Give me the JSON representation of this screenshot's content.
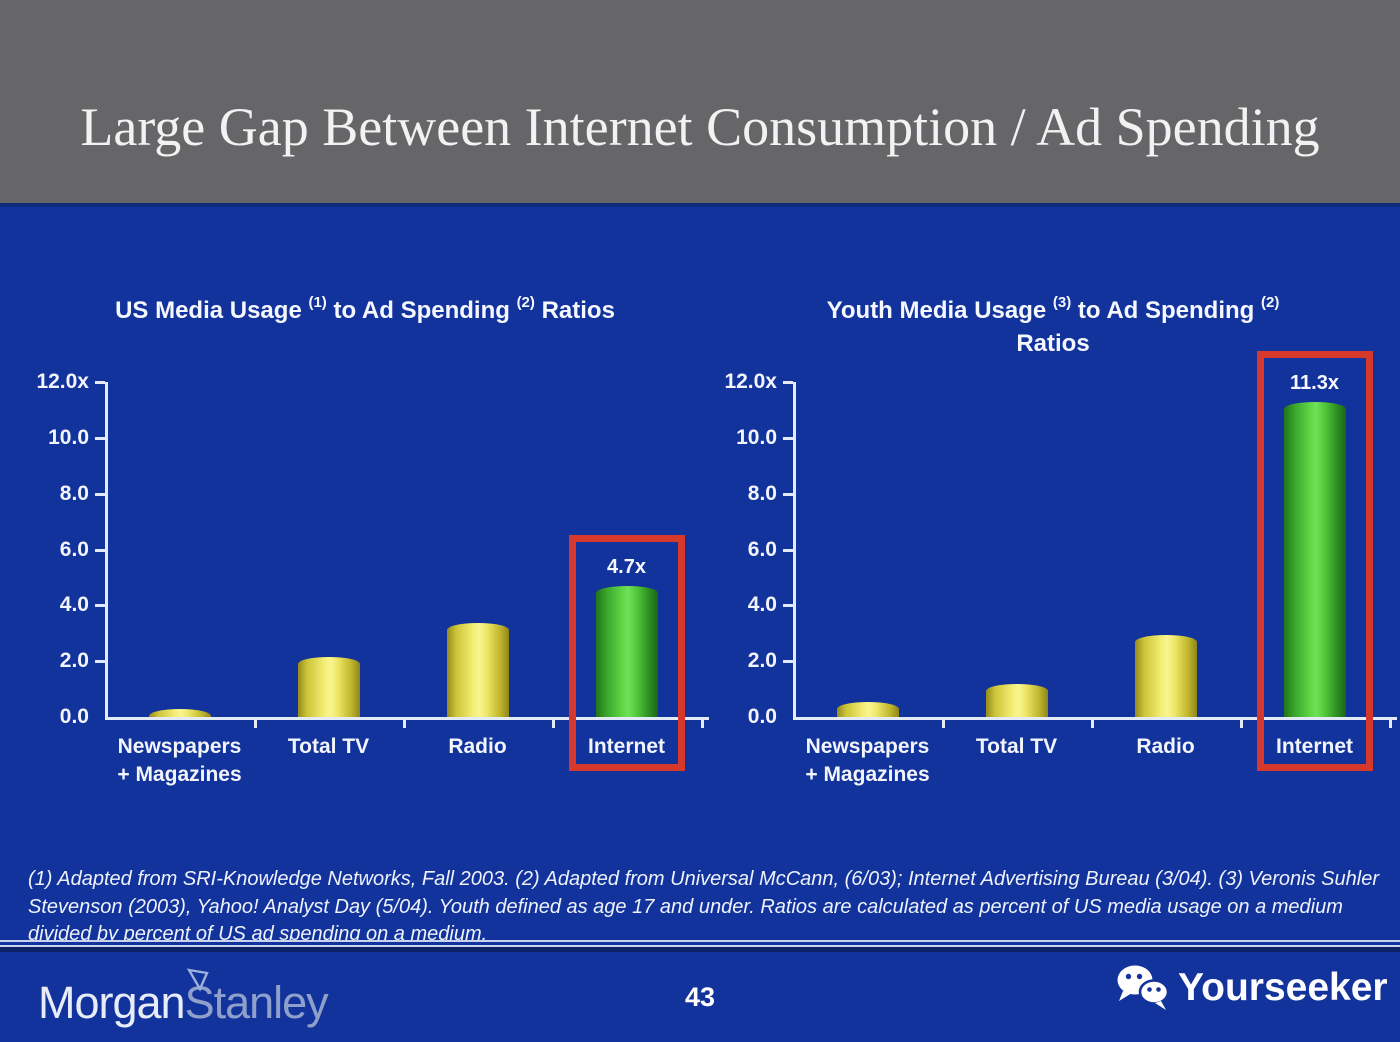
{
  "slide": {
    "title": "Large Gap Between Internet Consumption / Ad Spending",
    "page_number": "43",
    "footnote": "(1) Adapted from SRI-Knowledge Networks, Fall 2003.  (2) Adapted from Universal McCann, (6/03); Internet Advertising Bureau (3/04). (3) Veronis Suhler Stevenson (2003), Yahoo! Analyst Day (5/04).  Youth defined as age 17 and under.  Ratios are calculated as percent of US media usage on a medium divided by percent of US ad spending on a medium."
  },
  "branding": {
    "logo_left_word1": "Morgan",
    "logo_left_word2": "Stanley",
    "logo_right": "Yourseeker",
    "logo_right_icon": "wechat-icon"
  },
  "colors": {
    "header_gray": "#666567",
    "background_blue": "#13339c",
    "bar_yellow_center": "#f9f590",
    "bar_yellow_edge": "#958b1e",
    "bar_green_center": "#70e257",
    "bar_green_edge": "#227318",
    "highlight_red": "#d6392b",
    "text_white": "#f2f5fc",
    "logo_morgan": "#e7ecf8",
    "logo_stanley": "#8fa0cb"
  },
  "chart_data": [
    {
      "type": "bar",
      "title_lines": [
        [
          {
            "text": "US Media Usage "
          },
          {
            "sup": "(1)"
          },
          {
            "text": " to Ad Spending "
          },
          {
            "sup": "(2)"
          },
          {
            "text": " Ratios"
          }
        ]
      ],
      "categories": [
        [
          "Newspapers",
          "+ Magazines"
        ],
        [
          "Total TV"
        ],
        [
          "Radio"
        ],
        [
          "Internet"
        ]
      ],
      "values": [
        0.3,
        2.15,
        3.35,
        4.7
      ],
      "bar_colors": [
        "yellow",
        "yellow",
        "yellow",
        "green"
      ],
      "ylim": [
        0,
        12
      ],
      "yticks": [
        {
          "label": "12.0x",
          "value": 12
        },
        {
          "label": "10.0",
          "value": 10
        },
        {
          "label": "8.0",
          "value": 8
        },
        {
          "label": "6.0",
          "value": 6
        },
        {
          "label": "4.0",
          "value": 4
        },
        {
          "label": "2.0",
          "value": 2
        },
        {
          "label": "0.0",
          "value": 0
        }
      ],
      "grid": false,
      "legend": null,
      "highlight": {
        "index": 3,
        "label": "4.7x"
      }
    },
    {
      "type": "bar",
      "title_lines": [
        [
          {
            "text": "Youth Media Usage "
          },
          {
            "sup": "(3)"
          },
          {
            "text": " to Ad Spending "
          },
          {
            "sup": "(2)"
          }
        ],
        [
          {
            "text": "Ratios"
          }
        ]
      ],
      "categories": [
        [
          "Newspapers",
          "+ Magazines"
        ],
        [
          "Total TV"
        ],
        [
          "Radio"
        ],
        [
          "Internet"
        ]
      ],
      "values": [
        0.55,
        1.2,
        2.95,
        11.3
      ],
      "bar_colors": [
        "yellow",
        "yellow",
        "yellow",
        "green"
      ],
      "ylim": [
        0,
        12
      ],
      "yticks": [
        {
          "label": "12.0x",
          "value": 12
        },
        {
          "label": "10.0",
          "value": 10
        },
        {
          "label": "8.0",
          "value": 8
        },
        {
          "label": "6.0",
          "value": 6
        },
        {
          "label": "4.0",
          "value": 4
        },
        {
          "label": "2.0",
          "value": 2
        },
        {
          "label": "0.0",
          "value": 0
        }
      ],
      "grid": false,
      "legend": null,
      "highlight": {
        "index": 3,
        "label": "11.3x"
      }
    }
  ]
}
